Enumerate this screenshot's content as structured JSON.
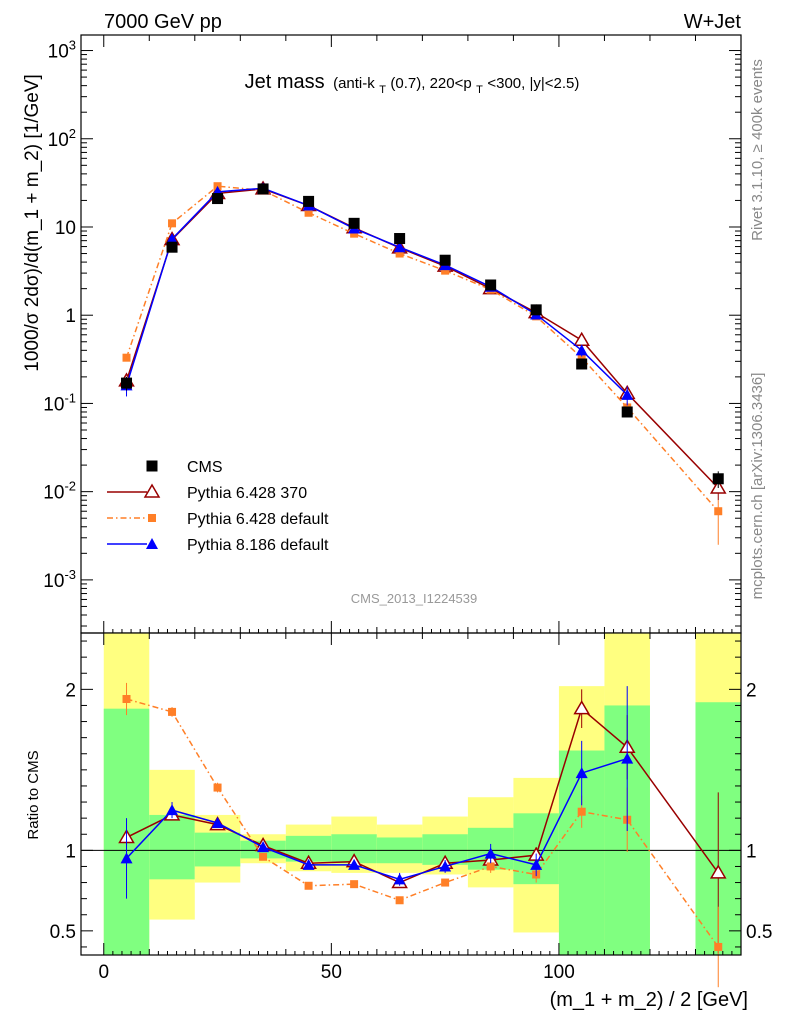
{
  "header": {
    "left": "7000 GeV pp",
    "right": "W+Jet"
  },
  "title_main": "Jet mass",
  "title_sub": "(anti-k",
  "title_sub_T": "T",
  "title_sub_mid": "(0.7), 220<p",
  "title_sub_T2": "T",
  "title_sub_end": "<300, |y|<2.5)",
  "side_labels": {
    "rivet": "Rivet 3.1.10, ≥ 400k events",
    "mcplots": "mcplots.cern.ch [arXiv:1306.3436]"
  },
  "analysis_id": "CMS_2013_I1224539",
  "chart_data": [
    {
      "type": "line",
      "panel": "main",
      "ylabel": "1000/σ 2dσ)/d(m_1 + m_2) [1/GeV]",
      "yscale": "log",
      "xlim": [
        -5,
        140
      ],
      "ylim": [
        0.00025,
        1500
      ],
      "y_tick_labels": [
        "10^-3",
        "10^-2",
        "10^-1",
        "1",
        "10",
        "10^2",
        "10^3"
      ],
      "legend_placement": "lower-left",
      "x": [
        5,
        15,
        25,
        35,
        45,
        55,
        65,
        75,
        85,
        95,
        105,
        115,
        135
      ],
      "series": [
        {
          "name": "CMS",
          "color": "#000000",
          "marker": "square",
          "values": [
            0.17,
            5.9,
            21,
            27,
            19.5,
            11,
            7.4,
            4.2,
            2.2,
            1.15,
            0.28,
            0.08,
            0.014
          ],
          "err_lo": [
            0.03,
            0.4,
            1,
            1,
            0.8,
            0.5,
            0.4,
            0.2,
            0.15,
            0.08,
            0.03,
            0.01,
            0.003
          ],
          "err_hi": [
            0.03,
            0.4,
            1,
            1,
            0.8,
            0.5,
            0.4,
            0.2,
            0.15,
            0.08,
            0.03,
            0.01,
            0.003
          ]
        },
        {
          "name": "Pythia 6.428 370",
          "color": "#990000",
          "marker": "open-triangle",
          "style": "solid",
          "values": [
            0.18,
            7.2,
            24,
            27,
            17.5,
            9.8,
            5.8,
            3.6,
            2.0,
            1.07,
            0.52,
            0.13,
            0.011
          ],
          "err_lo": [
            0.02,
            0.3,
            0.6,
            0.6,
            0.5,
            0.3,
            0.2,
            0.15,
            0.1,
            0.06,
            0.04,
            0.02,
            0.003
          ],
          "err_hi": [
            0.02,
            0.3,
            0.6,
            0.6,
            0.5,
            0.3,
            0.2,
            0.15,
            0.1,
            0.06,
            0.04,
            0.02,
            0.003
          ]
        },
        {
          "name": "Pythia 6.428 default",
          "color": "#ff7f27",
          "marker": "filled-square-small",
          "style": "dashdot",
          "values": [
            0.33,
            11,
            29,
            26,
            14.5,
            8.4,
            5.0,
            3.2,
            1.95,
            0.97,
            0.33,
            0.09,
            0.006
          ],
          "err_lo": [
            0.03,
            0.4,
            0.8,
            0.7,
            0.5,
            0.3,
            0.2,
            0.15,
            0.1,
            0.06,
            0.03,
            0.015,
            0.0035
          ],
          "err_hi": [
            0.03,
            0.4,
            0.8,
            0.7,
            0.5,
            0.3,
            0.2,
            0.15,
            0.1,
            0.06,
            0.03,
            0.015,
            0.002
          ]
        },
        {
          "name": "Pythia 8.186 default",
          "color": "#0000ff",
          "marker": "filled-triangle",
          "style": "solid",
          "values": [
            0.16,
            7.3,
            25,
            27.5,
            17.5,
            9.6,
            5.9,
            3.7,
            2.1,
            1.02,
            0.4,
            0.125,
            null
          ],
          "err_lo": [
            0.04,
            0.4,
            0.7,
            0.7,
            0.5,
            0.3,
            0.2,
            0.15,
            0.1,
            0.07,
            0.06,
            0.03,
            null
          ],
          "err_hi": [
            0.04,
            0.4,
            0.7,
            0.7,
            0.5,
            0.3,
            0.2,
            0.15,
            0.1,
            0.07,
            0.06,
            0.03,
            null
          ]
        }
      ]
    },
    {
      "type": "line",
      "panel": "ratio",
      "ylabel": "Ratio to CMS",
      "xlabel": "(m_1 + m_2) / 2 [GeV]",
      "xlim": [
        -5,
        140
      ],
      "ylim": [
        0.35,
        2.35
      ],
      "x_ticks": [
        0,
        50,
        100
      ],
      "y_ticks": [
        0.5,
        1,
        2
      ],
      "reference_line": 1,
      "bands": [
        {
          "x0": 0,
          "x1": 10,
          "green": [
            0.35,
            1.88
          ],
          "yellow": [
            0.35,
            2.35
          ]
        },
        {
          "x0": 10,
          "x1": 20,
          "green": [
            0.82,
            1.22
          ],
          "yellow": [
            0.57,
            1.5
          ]
        },
        {
          "x0": 20,
          "x1": 30,
          "green": [
            0.9,
            1.11
          ],
          "yellow": [
            0.8,
            1.22
          ]
        },
        {
          "x0": 30,
          "x1": 40,
          "green": [
            0.95,
            1.06
          ],
          "yellow": [
            0.92,
            1.1
          ]
        },
        {
          "x0": 40,
          "x1": 50,
          "green": [
            0.93,
            1.09
          ],
          "yellow": [
            0.87,
            1.16
          ]
        },
        {
          "x0": 50,
          "x1": 60,
          "green": [
            0.92,
            1.1
          ],
          "yellow": [
            0.86,
            1.21
          ]
        },
        {
          "x0": 60,
          "x1": 70,
          "green": [
            0.92,
            1.08
          ],
          "yellow": [
            0.86,
            1.16
          ]
        },
        {
          "x0": 70,
          "x1": 80,
          "green": [
            0.91,
            1.1
          ],
          "yellow": [
            0.85,
            1.21
          ]
        },
        {
          "x0": 80,
          "x1": 90,
          "green": [
            0.88,
            1.14
          ],
          "yellow": [
            0.77,
            1.33
          ]
        },
        {
          "x0": 90,
          "x1": 100,
          "green": [
            0.79,
            1.23
          ],
          "yellow": [
            0.49,
            1.45
          ]
        },
        {
          "x0": 100,
          "x1": 110,
          "green": [
            0.35,
            1.62
          ],
          "yellow": [
            0.35,
            2.02
          ]
        },
        {
          "x0": 110,
          "x1": 120,
          "green": [
            0.35,
            1.9
          ],
          "yellow": [
            0.35,
            2.35
          ]
        },
        {
          "x0": 130,
          "x1": 140,
          "green": [
            0.35,
            1.92
          ],
          "yellow": [
            0.35,
            2.35
          ]
        }
      ],
      "x": [
        5,
        15,
        25,
        35,
        45,
        55,
        65,
        75,
        85,
        95,
        105,
        115,
        135
      ],
      "series": [
        {
          "name": "Pythia 6.428 370",
          "color": "#990000",
          "marker": "open-triangle",
          "style": "solid",
          "values": [
            1.08,
            1.22,
            1.16,
            1.03,
            0.92,
            0.93,
            0.8,
            0.92,
            0.94,
            0.97,
            1.88,
            1.64,
            0.86
          ],
          "err": [
            0.05,
            0.03,
            0.03,
            0.02,
            0.02,
            0.02,
            0.03,
            0.03,
            0.04,
            0.05,
            0.12,
            0.2,
            0.5
          ]
        },
        {
          "name": "Pythia 6.428 default",
          "color": "#ff7f27",
          "marker": "filled-square-small",
          "style": "dashdot",
          "values": [
            1.94,
            1.86,
            1.39,
            0.96,
            0.78,
            0.79,
            0.69,
            0.8,
            0.9,
            0.85,
            1.24,
            1.19,
            0.4
          ],
          "err": [
            0.1,
            0.03,
            0.03,
            0.02,
            0.02,
            0.02,
            0.02,
            0.02,
            0.04,
            0.05,
            0.1,
            0.2,
            0.25
          ]
        },
        {
          "name": "Pythia 8.186 default",
          "color": "#0000ff",
          "marker": "filled-triangle",
          "style": "solid",
          "values": [
            0.95,
            1.25,
            1.17,
            1.02,
            0.91,
            0.91,
            0.82,
            0.9,
            0.98,
            0.91,
            1.48,
            1.57,
            null
          ],
          "err": [
            0.25,
            0.05,
            0.03,
            0.02,
            0.02,
            0.02,
            0.04,
            0.04,
            0.06,
            0.07,
            0.2,
            0.45,
            null
          ]
        }
      ]
    }
  ]
}
